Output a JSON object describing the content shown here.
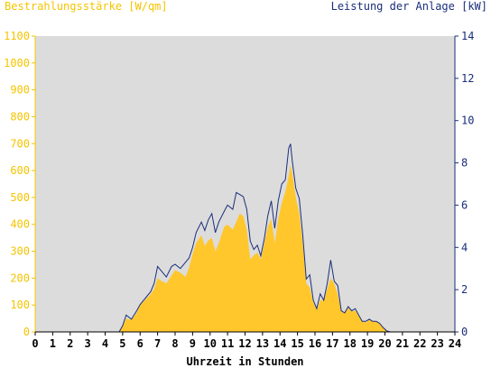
{
  "header": {
    "left_title": "Bestrahlungsstärke [W/qm]",
    "right_title": "Leistung der Anlage [kW]"
  },
  "chart_data": {
    "type": "area",
    "title": "",
    "xlabel": "Uhrzeit in Stunden",
    "ylabel_left": "Bestrahlungsstärke [W/qm]",
    "ylabel_right": "Leistung der Anlage [kW]",
    "xlim": [
      0,
      24
    ],
    "ylim_left": [
      0,
      1100
    ],
    "ylim_right": [
      0,
      14
    ],
    "x_ticks": [
      "0",
      "1",
      "2",
      "3",
      "4",
      "5",
      "6",
      "7",
      "8",
      "9",
      "10",
      "11",
      "12",
      "13",
      "14",
      "15",
      "16",
      "17",
      "18",
      "19",
      "20",
      "21",
      "22",
      "23",
      "24"
    ],
    "y_left_ticks": [
      "0",
      "100",
      "200",
      "300",
      "400",
      "500",
      "600",
      "700",
      "800",
      "900",
      "1000",
      "1100"
    ],
    "y_right_ticks": [
      "0",
      "2",
      "4",
      "6",
      "8",
      "10",
      "12",
      "14"
    ],
    "grid": false,
    "colors": {
      "plot_background": "#dcdcdc",
      "irradiance_fill": "#ffc72c",
      "power_line": "#1a2e7a",
      "left_axis": "#f5c400",
      "right_axis": "#1a2e7a"
    },
    "series": [
      {
        "key": "irradiance",
        "axis": "left",
        "style": "area",
        "x": [
          0,
          4.8,
          5.0,
          5.2,
          5.5,
          5.8,
          6.0,
          6.3,
          6.6,
          6.8,
          7.0,
          7.2,
          7.5,
          7.8,
          8.0,
          8.3,
          8.6,
          8.8,
          9.0,
          9.2,
          9.5,
          9.7,
          9.9,
          10.1,
          10.3,
          10.5,
          10.8,
          11.0,
          11.3,
          11.5,
          11.7,
          11.9,
          12.1,
          12.3,
          12.5,
          12.7,
          12.9,
          13.1,
          13.3,
          13.5,
          13.7,
          13.9,
          14.1,
          14.3,
          14.5,
          14.6,
          14.7,
          14.9,
          15.1,
          15.3,
          15.5,
          15.7,
          15.9,
          16.1,
          16.3,
          16.5,
          16.7,
          16.9,
          17.1,
          17.3,
          17.5,
          17.7,
          17.9,
          18.1,
          18.3,
          18.5,
          18.7,
          18.9,
          19.1,
          19.3,
          19.5,
          19.7,
          19.9,
          20.1,
          20.3,
          24
        ],
        "values": [
          0,
          0,
          20,
          50,
          45,
          70,
          100,
          120,
          140,
          160,
          200,
          190,
          180,
          210,
          230,
          220,
          205,
          240,
          290,
          330,
          360,
          320,
          340,
          350,
          300,
          330,
          390,
          400,
          380,
          410,
          440,
          430,
          380,
          270,
          285,
          295,
          270,
          330,
          390,
          420,
          330,
          420,
          480,
          520,
          580,
          620,
          590,
          500,
          440,
          330,
          180,
          165,
          110,
          80,
          120,
          115,
          160,
          200,
          180,
          140,
          80,
          70,
          90,
          75,
          80,
          60,
          40,
          35,
          45,
          40,
          40,
          30,
          15,
          5,
          0,
          0
        ]
      },
      {
        "key": "power",
        "axis": "right",
        "style": "line",
        "x": [
          0,
          4.8,
          5.0,
          5.2,
          5.5,
          5.8,
          6.0,
          6.3,
          6.6,
          6.8,
          7.0,
          7.2,
          7.5,
          7.8,
          8.0,
          8.3,
          8.6,
          8.8,
          9.0,
          9.2,
          9.5,
          9.7,
          9.9,
          10.1,
          10.3,
          10.5,
          10.8,
          11.0,
          11.3,
          11.5,
          11.7,
          11.9,
          12.1,
          12.3,
          12.5,
          12.7,
          12.9,
          13.1,
          13.3,
          13.5,
          13.7,
          13.9,
          14.1,
          14.3,
          14.5,
          14.6,
          14.7,
          14.9,
          15.1,
          15.3,
          15.5,
          15.7,
          15.9,
          16.1,
          16.3,
          16.5,
          16.7,
          16.9,
          17.1,
          17.3,
          17.5,
          17.7,
          17.9,
          18.1,
          18.3,
          18.5,
          18.7,
          18.9,
          19.1,
          19.3,
          19.5,
          19.7,
          19.9,
          20.1,
          20.3,
          24
        ],
        "values": [
          0,
          0,
          0.3,
          0.8,
          0.6,
          1.0,
          1.3,
          1.6,
          1.9,
          2.3,
          3.1,
          2.9,
          2.6,
          3.1,
          3.2,
          3.0,
          3.3,
          3.5,
          4.0,
          4.7,
          5.2,
          4.8,
          5.3,
          5.6,
          4.7,
          5.2,
          5.7,
          6.0,
          5.8,
          6.6,
          6.5,
          6.4,
          5.8,
          4.3,
          3.9,
          4.1,
          3.6,
          4.4,
          5.5,
          6.2,
          4.9,
          6.2,
          7.0,
          7.2,
          8.7,
          8.9,
          8.1,
          6.8,
          6.3,
          4.6,
          2.5,
          2.7,
          1.5,
          1.1,
          1.8,
          1.5,
          2.3,
          3.4,
          2.4,
          2.2,
          1.0,
          0.9,
          1.2,
          1.0,
          1.1,
          0.8,
          0.5,
          0.5,
          0.6,
          0.5,
          0.5,
          0.4,
          0.2,
          0.05,
          0,
          0
        ]
      }
    ]
  }
}
